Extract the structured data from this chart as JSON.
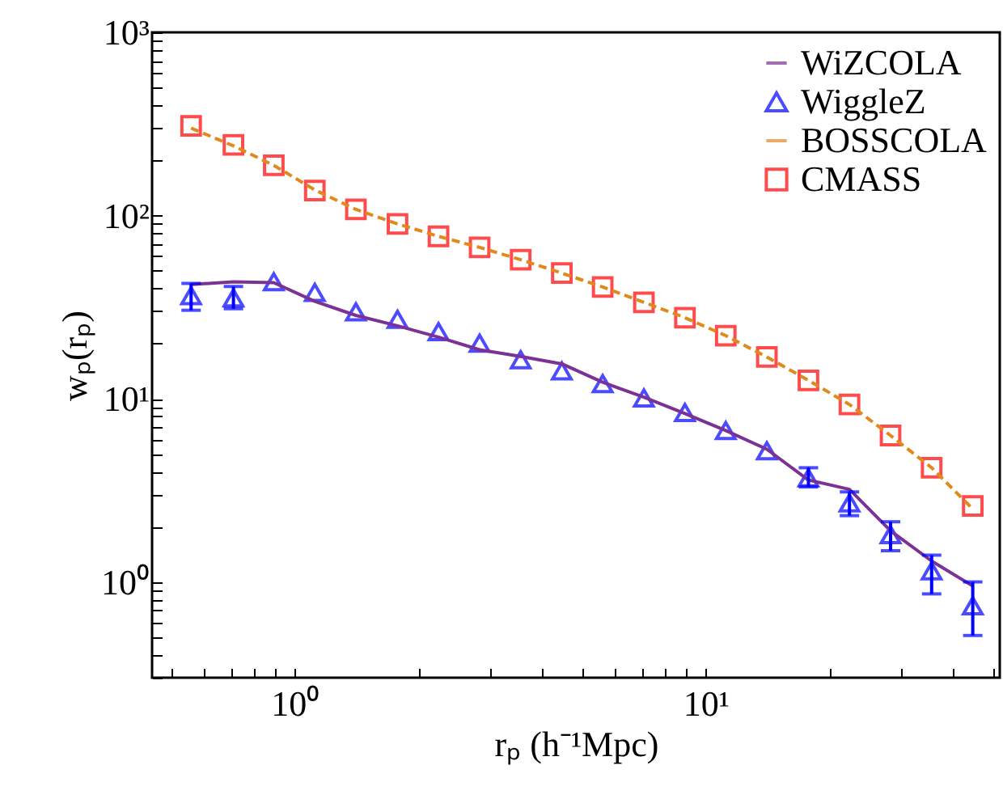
{
  "chart_data": {
    "type": "line",
    "xlabel": "rₚ (h⁻¹Mpc)",
    "ylabel": "wₚ(rₚ)",
    "log": "xy",
    "grid": false,
    "legend": "top right",
    "xlim": [
      0.45,
      52
    ],
    "ylim": [
      0.3,
      1000
    ],
    "xticks": [
      {
        "value": 0.5,
        "label": null
      },
      {
        "value": 0.6,
        "label": null
      },
      {
        "value": 0.7,
        "label": null
      },
      {
        "value": 0.8,
        "label": null
      },
      {
        "value": 0.9,
        "label": null
      },
      {
        "value": 1,
        "label": "10⁰"
      },
      {
        "value": 2,
        "label": null
      },
      {
        "value": 3,
        "label": null
      },
      {
        "value": 4,
        "label": null
      },
      {
        "value": 5,
        "label": null
      },
      {
        "value": 6,
        "label": null
      },
      {
        "value": 7,
        "label": null
      },
      {
        "value": 8,
        "label": null
      },
      {
        "value": 9,
        "label": null
      },
      {
        "value": 10,
        "label": "10¹"
      },
      {
        "value": 20,
        "label": null
      },
      {
        "value": 30,
        "label": null
      },
      {
        "value": 40,
        "label": null
      },
      {
        "value": 50,
        "label": null
      }
    ],
    "yticks": [
      {
        "value": 0.3,
        "label": null
      },
      {
        "value": 0.4,
        "label": null
      },
      {
        "value": 0.5,
        "label": null
      },
      {
        "value": 0.6,
        "label": null
      },
      {
        "value": 0.7,
        "label": null
      },
      {
        "value": 0.8,
        "label": null
      },
      {
        "value": 0.9,
        "label": null
      },
      {
        "value": 1,
        "label": "10⁰"
      },
      {
        "value": 2,
        "label": null
      },
      {
        "value": 3,
        "label": null
      },
      {
        "value": 4,
        "label": null
      },
      {
        "value": 5,
        "label": null
      },
      {
        "value": 6,
        "label": null
      },
      {
        "value": 7,
        "label": null
      },
      {
        "value": 8,
        "label": null
      },
      {
        "value": 9,
        "label": null
      },
      {
        "value": 10,
        "label": "10¹"
      },
      {
        "value": 20,
        "label": null
      },
      {
        "value": 30,
        "label": null
      },
      {
        "value": 40,
        "label": null
      },
      {
        "value": 50,
        "label": null
      },
      {
        "value": 60,
        "label": null
      },
      {
        "value": 70,
        "label": null
      },
      {
        "value": 80,
        "label": null
      },
      {
        "value": 90,
        "label": null
      },
      {
        "value": 100,
        "label": "10²"
      },
      {
        "value": 200,
        "label": null
      },
      {
        "value": 300,
        "label": null
      },
      {
        "value": 400,
        "label": null
      },
      {
        "value": 500,
        "label": null
      },
      {
        "value": 600,
        "label": null
      },
      {
        "value": 700,
        "label": null
      },
      {
        "value": 800,
        "label": null
      },
      {
        "value": 900,
        "label": null
      },
      {
        "value": 1000,
        "label": "10³"
      }
    ],
    "x": [
      0.56,
      0.71,
      0.89,
      1.12,
      1.41,
      1.78,
      2.24,
      2.82,
      3.55,
      4.47,
      5.62,
      7.08,
      8.91,
      11.2,
      14.1,
      17.8,
      22.4,
      28.2,
      35.5,
      44.7
    ],
    "series": [
      {
        "name": "WiZCOLA",
        "type": "line",
        "line_style": "solid",
        "color": "#7b3294",
        "values": [
          42,
          43.5,
          43,
          34,
          28.5,
          25,
          21.7,
          18.5,
          17,
          15.5,
          12.3,
          10.2,
          8.3,
          6.7,
          5.3,
          3.6,
          3.2,
          1.9,
          1.3,
          0.95
        ]
      },
      {
        "name": "WiggleZ",
        "type": "scatter",
        "marker": "triangle",
        "color": "#0000ff",
        "values": [
          36.5,
          35.5,
          43.5,
          38,
          29.8,
          27.1,
          23.2,
          20.1,
          16.3,
          14.2,
          12.1,
          10.1,
          8.4,
          6.7,
          5.2,
          3.7,
          2.7,
          1.81,
          1.15,
          0.74
        ],
        "errors": [
          [
            30.4,
            42.6
          ],
          [
            31,
            41
          ],
          null,
          null,
          null,
          null,
          null,
          null,
          null,
          null,
          null,
          null,
          null,
          null,
          null,
          [
            3.3,
            4.2
          ],
          [
            2.3,
            3.1
          ],
          [
            1.48,
            2.13
          ],
          [
            0.86,
            1.4
          ],
          [
            0.51,
            1.0
          ]
        ]
      },
      {
        "name": "BOSSCOLA",
        "type": "line",
        "line_style": "dashed",
        "color": "#e08a1e",
        "values": [
          300,
          240,
          188,
          138,
          108,
          90,
          77,
          67,
          57.4,
          48.5,
          40.7,
          33.6,
          27.7,
          22.1,
          16.9,
          12.6,
          9.3,
          6.3,
          4.2,
          2.5
        ]
      },
      {
        "name": "CMASS",
        "type": "scatter",
        "marker": "square",
        "color": "#ff0000",
        "values": [
          309,
          243,
          188,
          137,
          108,
          90,
          77,
          67,
          57.4,
          48.5,
          40.7,
          33.6,
          27.7,
          22.1,
          16.9,
          12.6,
          9.3,
          6.3,
          4.2,
          2.6
        ]
      }
    ]
  }
}
